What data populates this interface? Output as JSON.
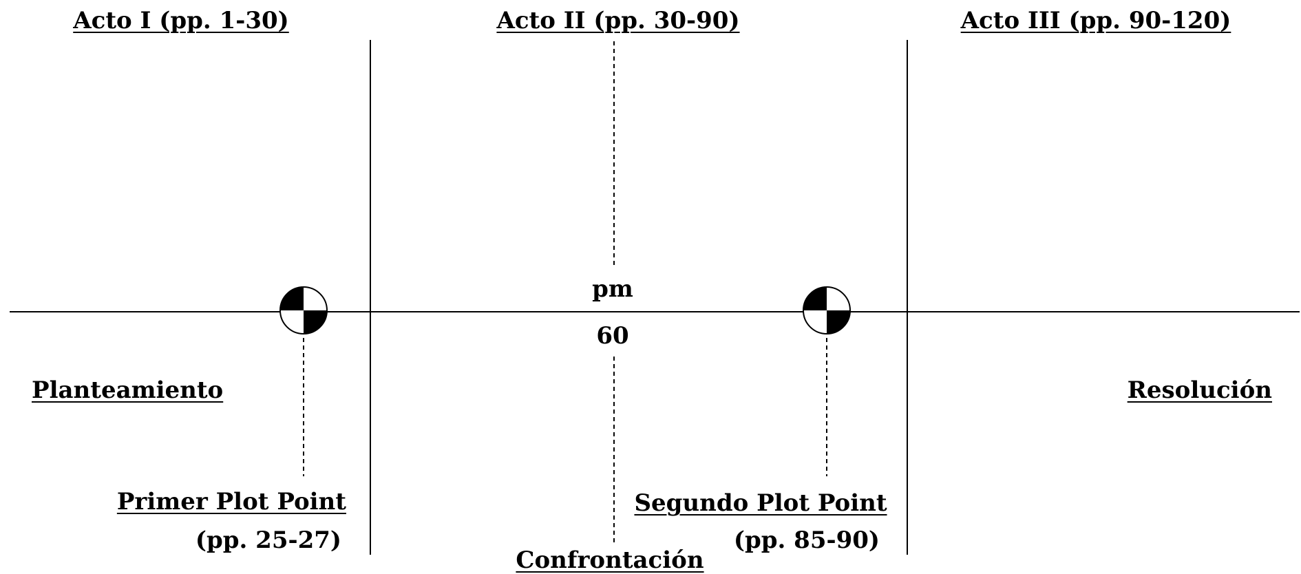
{
  "acts": [
    {
      "label": "Acto I (pp. 1-30)"
    },
    {
      "label": "Acto II (pp. 30-90)"
    },
    {
      "label": "Acto III (pp. 90-120)"
    }
  ],
  "midpoint": {
    "label": "pm",
    "page": "60"
  },
  "sections": {
    "setup": "Planteamiento",
    "confrontation": "Confrontación",
    "resolution": "Resolución"
  },
  "plot_points": [
    {
      "name": "Primer Plot Point",
      "pages": "(pp. 25-27)"
    },
    {
      "name": "Segundo Plot Point",
      "pages": "(pp. 85-90)"
    }
  ]
}
